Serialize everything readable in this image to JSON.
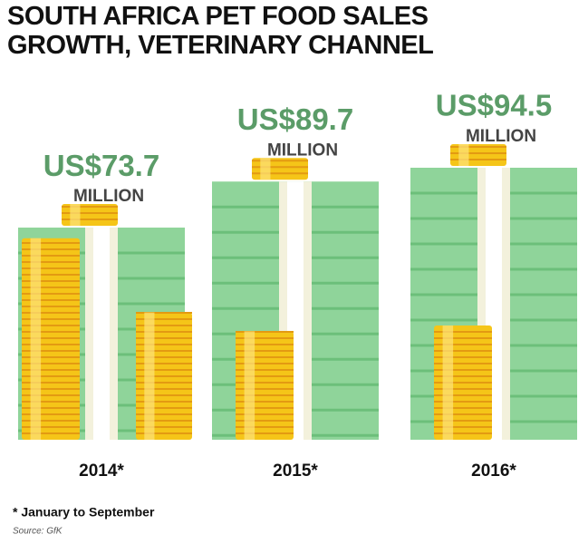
{
  "chart_data": {
    "type": "bar",
    "title": "SOUTH AFRICA PET FOOD SALES GROWTH, VETERINARY CHANNEL",
    "categories": [
      "2014*",
      "2015*",
      "2016*"
    ],
    "values": [
      73.7,
      89.7,
      94.5
    ],
    "value_labels": [
      "US$73.7",
      "US$89.7",
      "US$94.5"
    ],
    "unit_label": "MILLION",
    "color": "#8fd49a",
    "value_label_color": "#5b9c68",
    "footnote": "* January to September",
    "source": "Source: GfK"
  }
}
